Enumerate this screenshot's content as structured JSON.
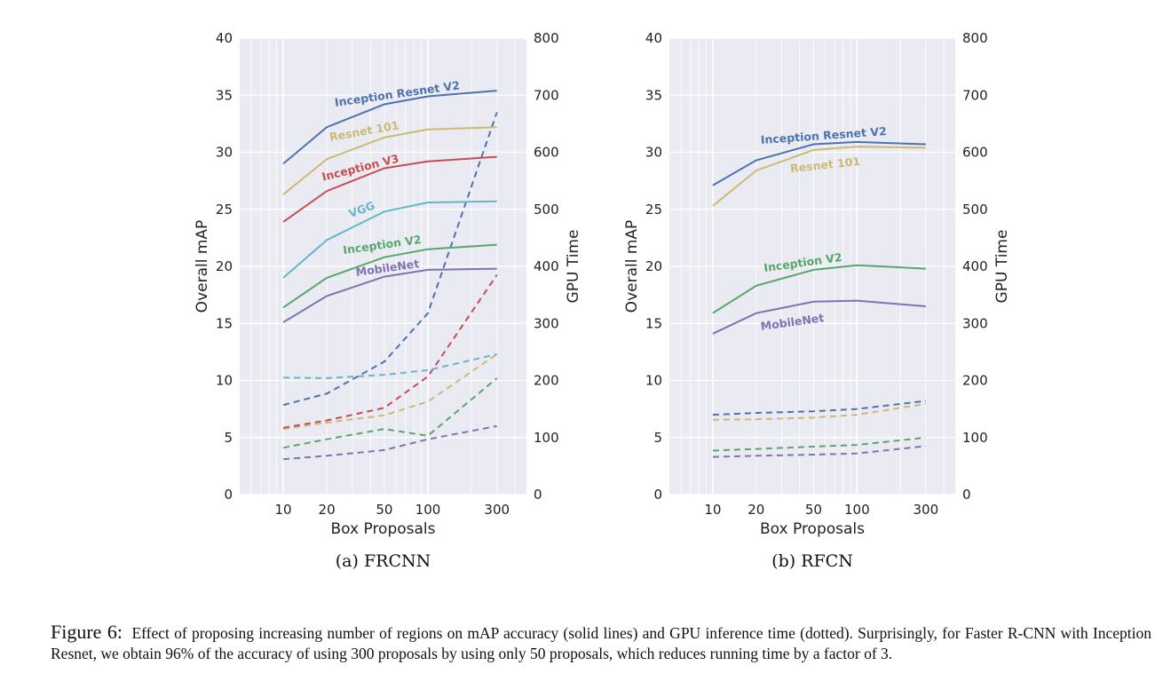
{
  "chart_data": [
    {
      "type": "line",
      "subtitle": "(a) FRCNN",
      "xlabel": "Box Proposals",
      "ylabel": "Overall mAP",
      "y2label": "GPU Time",
      "xscale": "log",
      "x": [
        10,
        20,
        50,
        100,
        300
      ],
      "xticks": [
        "10",
        "20",
        "50",
        "100",
        "300"
      ],
      "xlim": [
        5,
        480
      ],
      "ylim": [
        0,
        40
      ],
      "yticks": [
        "0",
        "5",
        "10",
        "15",
        "20",
        "25",
        "30",
        "35",
        "40"
      ],
      "y2lim": [
        0,
        800
      ],
      "y2ticks": [
        "0",
        "100",
        "200",
        "300",
        "400",
        "500",
        "600",
        "700",
        "800"
      ],
      "grid": true,
      "series": [
        {
          "name": "Inception Resnet V2",
          "color": "#4c72b0",
          "map": [
            29.0,
            32.2,
            34.2,
            34.9,
            35.4
          ],
          "gpu": [
            157,
            177,
            233,
            318,
            670
          ]
        },
        {
          "name": "Resnet 101",
          "color": "#ccb974",
          "map": [
            26.3,
            29.4,
            31.3,
            32.0,
            32.2
          ],
          "gpu": [
            115,
            126,
            139,
            163,
            246
          ]
        },
        {
          "name": "Inception V3",
          "color": "#c44e52",
          "map": [
            23.9,
            26.6,
            28.6,
            29.2,
            29.6
          ],
          "gpu": [
            117,
            130,
            152,
            207,
            385
          ]
        },
        {
          "name": "VGG",
          "color": "#64b5cd",
          "map": [
            19.0,
            22.3,
            24.8,
            25.6,
            25.7
          ],
          "gpu": [
            205,
            204,
            210,
            218,
            246
          ]
        },
        {
          "name": "Inception V2",
          "color": "#55a868",
          "map": [
            16.4,
            19.0,
            20.8,
            21.5,
            21.9
          ],
          "gpu": [
            82,
            97,
            115,
            103,
            204
          ]
        },
        {
          "name": "MobileNet",
          "color": "#8172b2",
          "map": [
            15.1,
            17.4,
            19.1,
            19.7,
            19.8
          ],
          "gpu": [
            62,
            68,
            78,
            97,
            120
          ]
        }
      ]
    },
    {
      "type": "line",
      "subtitle": "(b) RFCN",
      "xlabel": "Box Proposals",
      "ylabel": "Overall mAP",
      "y2label": "GPU Time",
      "xscale": "log",
      "x": [
        10,
        20,
        50,
        100,
        300
      ],
      "xticks": [
        "10",
        "20",
        "50",
        "100",
        "300"
      ],
      "xlim": [
        5,
        480
      ],
      "ylim": [
        0,
        40
      ],
      "yticks": [
        "0",
        "5",
        "10",
        "15",
        "20",
        "25",
        "30",
        "35",
        "40"
      ],
      "y2lim": [
        0,
        800
      ],
      "y2ticks": [
        "0",
        "100",
        "200",
        "300",
        "400",
        "500",
        "600",
        "700",
        "800"
      ],
      "grid": true,
      "series": [
        {
          "name": "Inception Resnet V2",
          "color": "#4c72b0",
          "map": [
            27.1,
            29.3,
            30.7,
            30.9,
            30.7
          ],
          "gpu": [
            140,
            143,
            146,
            150,
            164
          ]
        },
        {
          "name": "Resnet 101",
          "color": "#ccb974",
          "map": [
            25.3,
            28.4,
            30.2,
            30.5,
            30.4
          ],
          "gpu": [
            131,
            132,
            135,
            140,
            159
          ]
        },
        {
          "name": "Inception V2",
          "color": "#55a868",
          "map": [
            15.9,
            18.3,
            19.7,
            20.1,
            19.8
          ],
          "gpu": [
            77,
            80,
            84,
            87,
            100
          ]
        },
        {
          "name": "MobileNet",
          "color": "#8172b2",
          "map": [
            14.1,
            15.9,
            16.9,
            17.0,
            16.5
          ],
          "gpu": [
            66,
            68,
            70,
            72,
            85
          ]
        }
      ]
    }
  ],
  "caption": {
    "label": "Figure 6:",
    "text": "Effect of proposing increasing number of regions on mAP accuracy (solid lines) and GPU inference time (dotted). Surprisingly, for Faster R-CNN with Inception Resnet, we obtain 96% of the accuracy of using 300 proposals by using only 50 proposals, which reduces running time by a factor of 3."
  }
}
